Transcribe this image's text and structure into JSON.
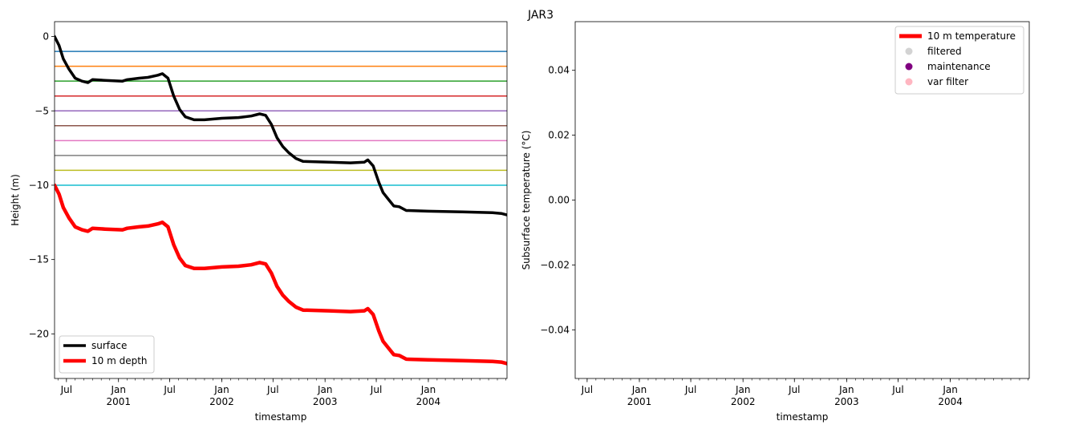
{
  "figure": {
    "title": "JAR3"
  },
  "chart_data": [
    {
      "type": "line",
      "xlabel": "timestamp",
      "ylabel": "Height (m)",
      "xlim": [
        "2000-05-20",
        "2004-10-05"
      ],
      "ylim": [
        -23,
        1
      ],
      "yticks": [
        0,
        -5,
        -10,
        -15,
        -20
      ],
      "xticks_major": [
        {
          "date": "2000-07-01",
          "label": "Jul",
          "year": ""
        },
        {
          "date": "2001-01-01",
          "label": "Jan",
          "year": "2001"
        },
        {
          "date": "2001-07-01",
          "label": "Jul",
          "year": ""
        },
        {
          "date": "2002-01-01",
          "label": "Jan",
          "year": "2002"
        },
        {
          "date": "2002-07-01",
          "label": "Jul",
          "year": ""
        },
        {
          "date": "2003-01-01",
          "label": "Jan",
          "year": "2003"
        },
        {
          "date": "2003-07-01",
          "label": "Jul",
          "year": ""
        },
        {
          "date": "2004-01-01",
          "label": "Jan",
          "year": "2004"
        }
      ],
      "hlines": [
        {
          "y": -1,
          "color": "#1f77b4"
        },
        {
          "y": -2,
          "color": "#ff7f0e"
        },
        {
          "y": -3,
          "color": "#2ca02c"
        },
        {
          "y": -4,
          "color": "#d62728"
        },
        {
          "y": -5,
          "color": "#9467bd"
        },
        {
          "y": -6,
          "color": "#8c564b"
        },
        {
          "y": -7,
          "color": "#e377c2"
        },
        {
          "y": -8,
          "color": "#7f7f7f"
        },
        {
          "y": -9,
          "color": "#bcbd22"
        },
        {
          "y": -10,
          "color": "#17becf"
        }
      ],
      "legend": {
        "placement": "lower-left"
      },
      "series": [
        {
          "name": "surface",
          "color": "#000000",
          "points": [
            [
              "2000-05-20",
              0.0
            ],
            [
              "2000-06-05",
              -0.6
            ],
            [
              "2000-06-20",
              -1.5
            ],
            [
              "2000-07-10",
              -2.2
            ],
            [
              "2000-08-01",
              -2.8
            ],
            [
              "2000-08-25",
              -3.0
            ],
            [
              "2000-09-15",
              -3.1
            ],
            [
              "2000-10-01",
              -2.9
            ],
            [
              "2000-11-15",
              -2.95
            ],
            [
              "2001-01-15",
              -3.0
            ],
            [
              "2001-02-01",
              -2.9
            ],
            [
              "2001-03-15",
              -2.8
            ],
            [
              "2001-04-15",
              -2.75
            ],
            [
              "2001-05-20",
              -2.6
            ],
            [
              "2001-06-05",
              -2.5
            ],
            [
              "2001-06-25",
              -2.8
            ],
            [
              "2001-07-15",
              -4.0
            ],
            [
              "2001-08-05",
              -4.9
            ],
            [
              "2001-08-25",
              -5.4
            ],
            [
              "2001-09-25",
              -5.6
            ],
            [
              "2001-11-01",
              -5.6
            ],
            [
              "2002-01-01",
              -5.5
            ],
            [
              "2002-03-01",
              -5.45
            ],
            [
              "2002-04-15",
              -5.35
            ],
            [
              "2002-05-15",
              -5.2
            ],
            [
              "2002-06-05",
              -5.3
            ],
            [
              "2002-06-25",
              -5.9
            ],
            [
              "2002-07-15",
              -6.8
            ],
            [
              "2002-08-05",
              -7.4
            ],
            [
              "2002-08-25",
              -7.8
            ],
            [
              "2002-09-20",
              -8.2
            ],
            [
              "2002-10-15",
              -8.4
            ],
            [
              "2003-01-15",
              -8.45
            ],
            [
              "2003-04-01",
              -8.5
            ],
            [
              "2003-05-20",
              -8.45
            ],
            [
              "2003-06-01",
              -8.3
            ],
            [
              "2003-06-20",
              -8.7
            ],
            [
              "2003-07-10",
              -9.8
            ],
            [
              "2003-07-25",
              -10.5
            ],
            [
              "2003-08-15",
              -11.0
            ],
            [
              "2003-09-01",
              -11.4
            ],
            [
              "2003-09-20",
              -11.45
            ],
            [
              "2003-10-15",
              -11.7
            ],
            [
              "2004-01-01",
              -11.75
            ],
            [
              "2004-05-01",
              -11.8
            ],
            [
              "2004-08-15",
              -11.85
            ],
            [
              "2004-09-15",
              -11.9
            ],
            [
              "2004-10-05",
              -12.0
            ]
          ]
        },
        {
          "name": "10 m depth",
          "color": "#ff0000",
          "points": [
            [
              "2000-05-20",
              -10.0
            ],
            [
              "2000-06-05",
              -10.6
            ],
            [
              "2000-06-20",
              -11.5
            ],
            [
              "2000-07-10",
              -12.2
            ],
            [
              "2000-08-01",
              -12.8
            ],
            [
              "2000-08-25",
              -13.0
            ],
            [
              "2000-09-15",
              -13.1
            ],
            [
              "2000-10-01",
              -12.9
            ],
            [
              "2000-11-15",
              -12.95
            ],
            [
              "2001-01-15",
              -13.0
            ],
            [
              "2001-02-01",
              -12.9
            ],
            [
              "2001-03-15",
              -12.8
            ],
            [
              "2001-04-15",
              -12.75
            ],
            [
              "2001-05-20",
              -12.6
            ],
            [
              "2001-06-05",
              -12.5
            ],
            [
              "2001-06-25",
              -12.8
            ],
            [
              "2001-07-15",
              -14.0
            ],
            [
              "2001-08-05",
              -14.9
            ],
            [
              "2001-08-25",
              -15.4
            ],
            [
              "2001-09-25",
              -15.6
            ],
            [
              "2001-11-01",
              -15.6
            ],
            [
              "2002-01-01",
              -15.5
            ],
            [
              "2002-03-01",
              -15.45
            ],
            [
              "2002-04-15",
              -15.35
            ],
            [
              "2002-05-15",
              -15.2
            ],
            [
              "2002-06-05",
              -15.3
            ],
            [
              "2002-06-25",
              -15.9
            ],
            [
              "2002-07-15",
              -16.8
            ],
            [
              "2002-08-05",
              -17.4
            ],
            [
              "2002-08-25",
              -17.8
            ],
            [
              "2002-09-20",
              -18.2
            ],
            [
              "2002-10-15",
              -18.4
            ],
            [
              "2003-01-15",
              -18.45
            ],
            [
              "2003-04-01",
              -18.5
            ],
            [
              "2003-05-20",
              -18.45
            ],
            [
              "2003-06-01",
              -18.3
            ],
            [
              "2003-06-20",
              -18.7
            ],
            [
              "2003-07-10",
              -19.8
            ],
            [
              "2003-07-25",
              -20.5
            ],
            [
              "2003-08-15",
              -21.0
            ],
            [
              "2003-09-01",
              -21.4
            ],
            [
              "2003-09-20",
              -21.45
            ],
            [
              "2003-10-15",
              -21.7
            ],
            [
              "2004-01-01",
              -21.75
            ],
            [
              "2004-05-01",
              -21.8
            ],
            [
              "2004-08-15",
              -21.85
            ],
            [
              "2004-09-15",
              -21.9
            ],
            [
              "2004-10-05",
              -22.0
            ]
          ]
        }
      ]
    },
    {
      "type": "line",
      "xlabel": "timestamp",
      "ylabel": "Subsurface temperature (°C)",
      "xlim": [
        "2000-05-20",
        "2004-10-05"
      ],
      "ylim": [
        -0.055,
        0.055
      ],
      "yticks": [
        0.04,
        0.02,
        0.0,
        -0.02,
        -0.04
      ],
      "ytick_labels": [
        "0.04",
        "0.02",
        "0.00",
        "−0.02",
        "−0.04"
      ],
      "xticks_major": [
        {
          "date": "2000-07-01",
          "label": "Jul",
          "year": ""
        },
        {
          "date": "2001-01-01",
          "label": "Jan",
          "year": "2001"
        },
        {
          "date": "2001-07-01",
          "label": "Jul",
          "year": ""
        },
        {
          "date": "2002-01-01",
          "label": "Jan",
          "year": "2002"
        },
        {
          "date": "2002-07-01",
          "label": "Jul",
          "year": ""
        },
        {
          "date": "2003-01-01",
          "label": "Jan",
          "year": "2003"
        },
        {
          "date": "2003-07-01",
          "label": "Jul",
          "year": ""
        },
        {
          "date": "2004-01-01",
          "label": "Jan",
          "year": "2004"
        }
      ],
      "legend": {
        "placement": "upper-right"
      },
      "series": [
        {
          "name": "10 m temperature",
          "kind": "line",
          "color": "#ff0000",
          "points": []
        },
        {
          "name": "filtered",
          "kind": "marker",
          "color": "#d3d3d3",
          "points": []
        },
        {
          "name": "maintenance",
          "kind": "marker",
          "color": "#800080",
          "points": []
        },
        {
          "name": "var filter",
          "kind": "marker",
          "color": "#ffb6c1",
          "points": []
        }
      ]
    }
  ]
}
